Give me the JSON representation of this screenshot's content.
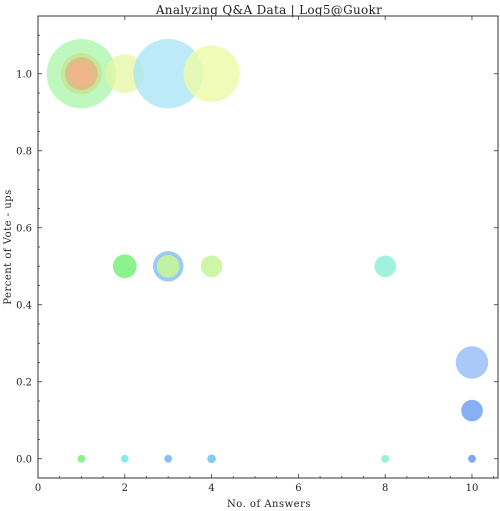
{
  "chart_data": {
    "type": "scatter",
    "title": "Analyzing Q&A Data | Log5@Guokr",
    "xlabel": "No. of Answers",
    "ylabel": "Percent of Vote - ups",
    "xlim": [
      0,
      10.6
    ],
    "ylim": [
      -0.05,
      1.15
    ],
    "xticks": [
      0,
      2,
      4,
      6,
      8,
      10
    ],
    "yticks": [
      0.0,
      0.2,
      0.4,
      0.6,
      0.8,
      1.0
    ],
    "xtick_labels": [
      "0",
      "2",
      "4",
      "6",
      "8",
      "10"
    ],
    "ytick_labels": [
      "0.0",
      "0.2",
      "0.4",
      "0.6",
      "0.8",
      "1.0"
    ],
    "grid": false,
    "points": [
      {
        "x": 1,
        "y": 1.0,
        "size": 1.6,
        "color": "#9cf59c",
        "opacity": 0.65
      },
      {
        "x": 2,
        "y": 1.0,
        "size": 0.9,
        "color": "#e4f79c",
        "opacity": 0.7
      },
      {
        "x": 3,
        "y": 1.0,
        "size": 1.6,
        "color": "#a6e3f7",
        "opacity": 0.75
      },
      {
        "x": 4,
        "y": 1.0,
        "size": 1.3,
        "color": "#ecfaa6",
        "opacity": 0.8
      },
      {
        "x": 1,
        "y": 1.0,
        "size": 0.95,
        "color": "#c9d87a",
        "opacity": 0.55
      },
      {
        "x": 1,
        "y": 1.0,
        "size": 0.75,
        "color": "#e9a67d",
        "opacity": 0.6
      },
      {
        "x": 1,
        "y": 1.0,
        "size": 0.55,
        "color": "#f5b48a",
        "opacity": 0.75
      },
      {
        "x": 2,
        "y": 0.5,
        "size": 0.55,
        "color": "#6ff06f",
        "opacity": 0.8
      },
      {
        "x": 3,
        "y": 0.5,
        "size": 0.7,
        "color": "#8fc4f5",
        "opacity": 0.9
      },
      {
        "x": 3,
        "y": 0.5,
        "size": 0.52,
        "color": "#c8f59a",
        "opacity": 0.9
      },
      {
        "x": 4,
        "y": 0.5,
        "size": 0.5,
        "color": "#c6f59a",
        "opacity": 0.85
      },
      {
        "x": 8,
        "y": 0.5,
        "size": 0.5,
        "color": "#8ff0d8",
        "opacity": 0.85
      },
      {
        "x": 10,
        "y": 0.25,
        "size": 0.75,
        "color": "#9cc0f7",
        "opacity": 0.85
      },
      {
        "x": 10,
        "y": 0.125,
        "size": 0.5,
        "color": "#7aa6f2",
        "opacity": 0.9
      },
      {
        "x": 1,
        "y": 0.0,
        "size": 0.18,
        "color": "#7ef07a",
        "opacity": 0.9
      },
      {
        "x": 2,
        "y": 0.0,
        "size": 0.18,
        "color": "#7ae8f0",
        "opacity": 0.9
      },
      {
        "x": 3,
        "y": 0.0,
        "size": 0.18,
        "color": "#7ab8f0",
        "opacity": 0.9
      },
      {
        "x": 4,
        "y": 0.0,
        "size": 0.2,
        "color": "#7ac4ee",
        "opacity": 0.9
      },
      {
        "x": 8,
        "y": 0.0,
        "size": 0.18,
        "color": "#8cf0d0",
        "opacity": 0.9
      },
      {
        "x": 10,
        "y": 0.0,
        "size": 0.18,
        "color": "#6f9ff0",
        "opacity": 0.9
      }
    ]
  }
}
